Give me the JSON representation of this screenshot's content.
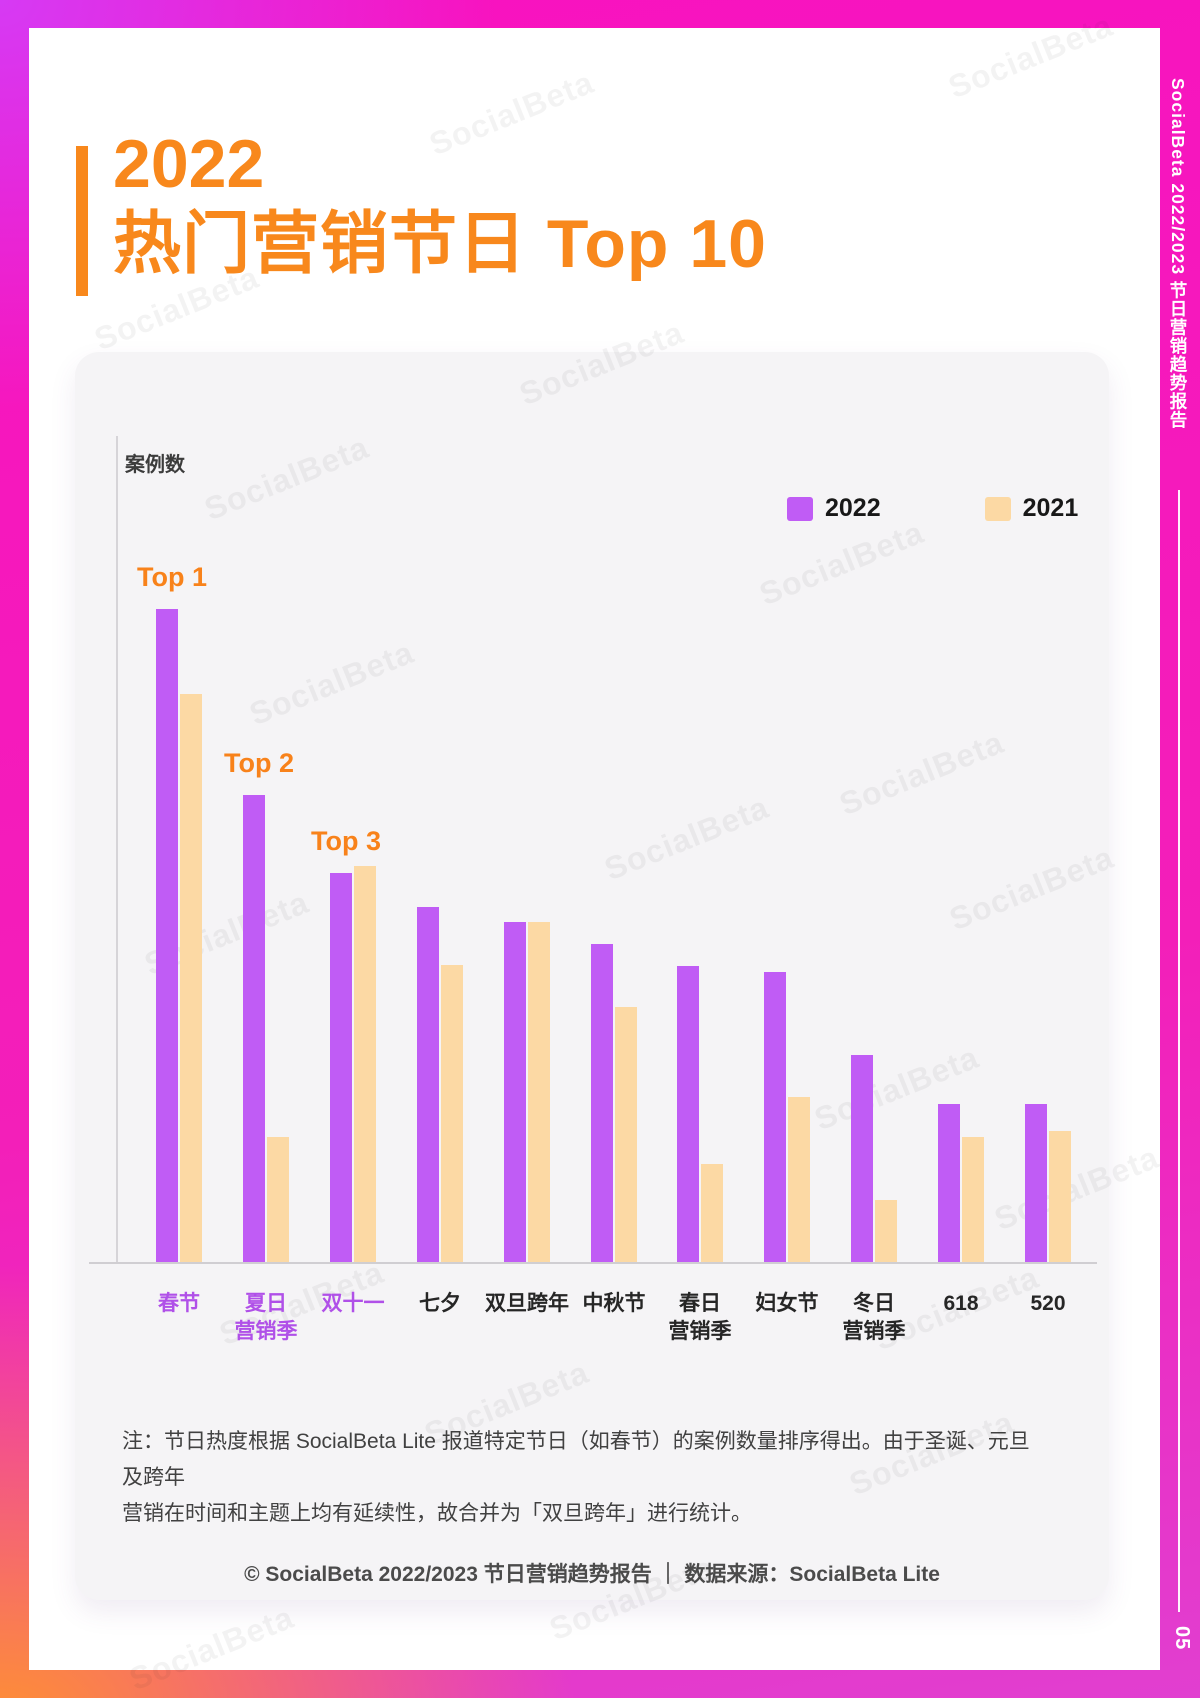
{
  "page": {
    "watermark_text": "SocialBeta",
    "sidebar": {
      "report_title": "SocialBeta 2022/2023 节日营销趋势报告",
      "page_number": "05"
    },
    "header": {
      "year_line": "2022",
      "title_line": "热门营销节日 Top 10"
    },
    "colors": {
      "accent_orange": "#f8881c",
      "bar_2022_purple": "#c05cf5",
      "bar_2021_peach": "#fcd9a4",
      "highlight_label_purple": "#b050e8",
      "axis_label_dark": "#262626",
      "sidebar_magenta": "#f31fb9"
    }
  },
  "card": {
    "ylabel": "案例数",
    "note": {
      "line1": "注：节日热度根据 SocialBeta Lite 报道特定节日（如春节）的案例数量排序得出。由于圣诞、元旦及跨年",
      "line2": "营销在时间和主题上均有延续性，故合并为「双旦跨年」进行统计。"
    },
    "footer": "© SocialBeta 2022/2023 节日营销趋势报告 ｜ 数据来源：SocialBeta Lite"
  },
  "chart_data": {
    "type": "bar",
    "title": "2022 热门营销节日 Top 10",
    "ylabel": "案例数",
    "value_units": "相对案例数（图中无数值轴，按柱高估算的相对值）",
    "categories": [
      "春节",
      "夏日营销季",
      "双十一",
      "七夕",
      "双旦跨年",
      "中秋节",
      "春日营销季",
      "妇女节",
      "冬日营销季",
      "618",
      "520"
    ],
    "categories_two_line": [
      [
        "春节"
      ],
      [
        "夏日",
        "营销季"
      ],
      [
        "双十一"
      ],
      [
        "七夕"
      ],
      [
        "双旦跨年"
      ],
      [
        "中秋节"
      ],
      [
        "春日",
        "营销季"
      ],
      [
        "妇女节"
      ],
      [
        "冬日",
        "营销季"
      ],
      [
        "618"
      ],
      [
        "520"
      ]
    ],
    "highlighted_category_indexes": [
      0,
      1,
      2
    ],
    "annotations": [
      {
        "label": "Top 1",
        "category": "春节"
      },
      {
        "label": "Top 2",
        "category": "夏日营销季"
      },
      {
        "label": "Top 3",
        "category": "双十一"
      }
    ],
    "series": [
      {
        "name": "2022",
        "color": "#c05cf5",
        "values": [
          653,
          467,
          389,
          355,
          340,
          318,
          296,
          290,
          207,
          158,
          158
        ]
      },
      {
        "name": "2021",
        "color": "#fcd9a4",
        "values": [
          568,
          125,
          396,
          297,
          340,
          255,
          98,
          165,
          62,
          125,
          131
        ]
      }
    ],
    "legend_position": "top-right",
    "grid": false,
    "baseline": 0
  }
}
